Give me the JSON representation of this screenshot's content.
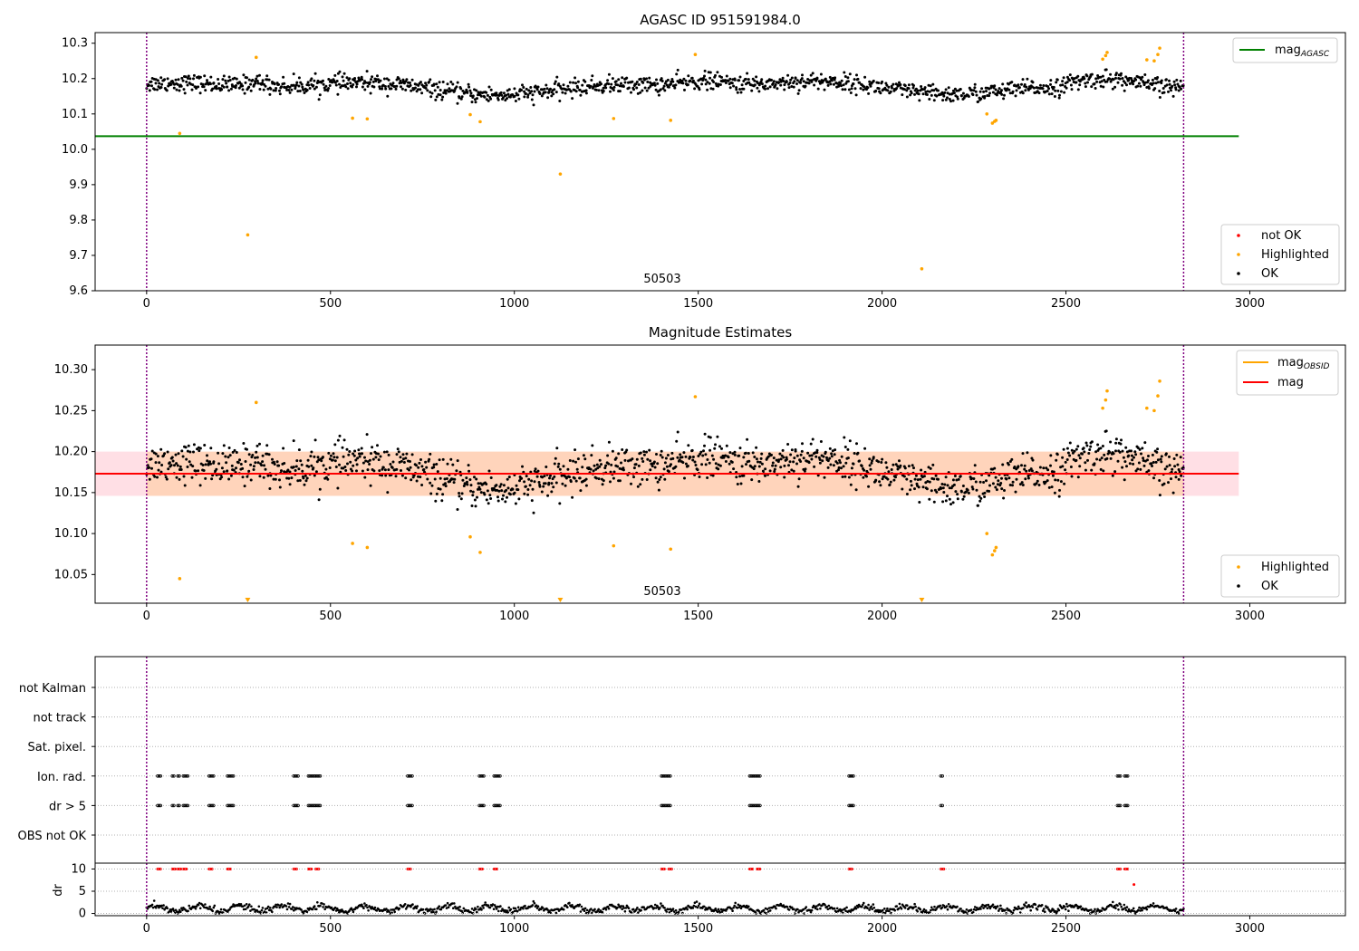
{
  "chart_data": [
    {
      "type": "scatter",
      "title": "AGASC ID 951591984.0",
      "xlim": [
        -140,
        3260
      ],
      "ylim": [
        9.6,
        10.33
      ],
      "xticks": [
        "0",
        "500",
        "1000",
        "1500",
        "2000",
        "2500",
        "3000"
      ],
      "yticks": [
        "9.6",
        "9.7",
        "9.8",
        "9.9",
        "10.0",
        "10.1",
        "10.2",
        "10.3"
      ],
      "obsid_label": "50503",
      "vlines": [
        0,
        2820
      ],
      "mag_agasc": 10.037,
      "mag_agasc_xrange": [
        -140,
        2970
      ],
      "ok_band": {
        "x_start": 0,
        "x_end": 2820,
        "center": 10.175,
        "spread": 0.028
      },
      "highlighted_points": [
        {
          "x": 90,
          "y": 10.045
        },
        {
          "x": 275,
          "y": 9.758
        },
        {
          "x": 298,
          "y": 10.26
        },
        {
          "x": 560,
          "y": 10.088
        },
        {
          "x": 600,
          "y": 10.086
        },
        {
          "x": 880,
          "y": 10.098
        },
        {
          "x": 907,
          "y": 10.078
        },
        {
          "x": 1125,
          "y": 9.93
        },
        {
          "x": 1270,
          "y": 10.087
        },
        {
          "x": 1425,
          "y": 10.082
        },
        {
          "x": 1492,
          "y": 10.268
        },
        {
          "x": 2108,
          "y": 9.662
        },
        {
          "x": 2285,
          "y": 10.1
        },
        {
          "x": 2300,
          "y": 10.074
        },
        {
          "x": 2306,
          "y": 10.079
        },
        {
          "x": 2310,
          "y": 10.082
        },
        {
          "x": 2600,
          "y": 10.255
        },
        {
          "x": 2608,
          "y": 10.265
        },
        {
          "x": 2612,
          "y": 10.274
        },
        {
          "x": 2720,
          "y": 10.253
        },
        {
          "x": 2740,
          "y": 10.25
        },
        {
          "x": 2750,
          "y": 10.268
        },
        {
          "x": 2755,
          "y": 10.286
        }
      ],
      "legend_mag": {
        "base": "mag",
        "sub": "AGASC"
      },
      "legend_points": [
        "not OK",
        "Highlighted",
        "OK"
      ],
      "colors": {
        "ok": "#000000",
        "highlighted": "#ffa500",
        "not_ok": "#ff0000",
        "agasc_line": "#008000",
        "vline": "#800080"
      }
    },
    {
      "type": "scatter",
      "title": "Magnitude Estimates",
      "xlim": [
        -140,
        3260
      ],
      "ylim": [
        10.015,
        10.33
      ],
      "xticks": [
        "0",
        "500",
        "1000",
        "1500",
        "2000",
        "2500",
        "3000"
      ],
      "yticks": [
        "10.05",
        "10.10",
        "10.15",
        "10.20",
        "10.25",
        "10.30"
      ],
      "obsid_label": "50503",
      "vlines": [
        0,
        2820
      ],
      "mag_line": 10.173,
      "mag_band": [
        10.146,
        10.2
      ],
      "mag_xrange": [
        -140,
        2970
      ],
      "obsid_band": {
        "x_start": 0,
        "x_end": 2820,
        "y_range": [
          10.146,
          10.2
        ]
      },
      "ok_band": {
        "x_start": 0,
        "x_end": 2820,
        "center": 10.175,
        "spread": 0.028
      },
      "highlighted_points": [
        {
          "x": 90,
          "y": 10.045
        },
        {
          "x": 298,
          "y": 10.26
        },
        {
          "x": 560,
          "y": 10.088
        },
        {
          "x": 600,
          "y": 10.083
        },
        {
          "x": 880,
          "y": 10.096
        },
        {
          "x": 907,
          "y": 10.077
        },
        {
          "x": 1270,
          "y": 10.085
        },
        {
          "x": 1425,
          "y": 10.081
        },
        {
          "x": 1492,
          "y": 10.267
        },
        {
          "x": 2285,
          "y": 10.1
        },
        {
          "x": 2300,
          "y": 10.074
        },
        {
          "x": 2306,
          "y": 10.079
        },
        {
          "x": 2310,
          "y": 10.083
        },
        {
          "x": 2600,
          "y": 10.253
        },
        {
          "x": 2608,
          "y": 10.263
        },
        {
          "x": 2612,
          "y": 10.274
        },
        {
          "x": 2720,
          "y": 10.253
        },
        {
          "x": 2740,
          "y": 10.25
        },
        {
          "x": 2750,
          "y": 10.268
        },
        {
          "x": 2755,
          "y": 10.286
        }
      ],
      "below_range_markers": [
        275,
        1125,
        2108
      ],
      "legend_mag": [
        {
          "base": "mag",
          "sub": "OBSID"
        },
        {
          "base": "mag",
          "sub": ""
        }
      ],
      "legend_points": [
        "Highlighted",
        "OK"
      ],
      "colors": {
        "ok": "#000000",
        "highlighted": "#ffa500",
        "mag_line": "#ff0000",
        "obsid_line": "#ffa500",
        "band": "#ffc0cb",
        "vline": "#800080"
      }
    },
    {
      "type": "scatter",
      "title": "",
      "xlim": [
        -140,
        3260
      ],
      "rows": [
        "not Kalman",
        "not track",
        "Sat. pixel.",
        "Ion. rad.",
        "dr > 5",
        "OBS not OK"
      ],
      "flag_clusters": [
        30,
        70,
        85,
        100,
        170,
        220,
        400,
        440,
        460,
        710,
        905,
        945,
        1400,
        1420,
        1640,
        1660,
        1910,
        2160,
        2640,
        2660
      ],
      "dr_ylim": [
        -0.5,
        10.5
      ],
      "dr_yticks": [
        "0",
        "5",
        "10"
      ],
      "dr_ylabel": "dr",
      "dr_outliers": [
        {
          "x": 2685,
          "y": 6.5
        }
      ],
      "xticks": [
        "0",
        "500",
        "1000",
        "1500",
        "2000",
        "2500",
        "3000"
      ],
      "vlines": [
        0,
        2820
      ],
      "colors": {
        "flag": "#000000",
        "dr_high": "#ff0000",
        "grid": "#b0b0b0",
        "vline": "#800080"
      }
    }
  ]
}
